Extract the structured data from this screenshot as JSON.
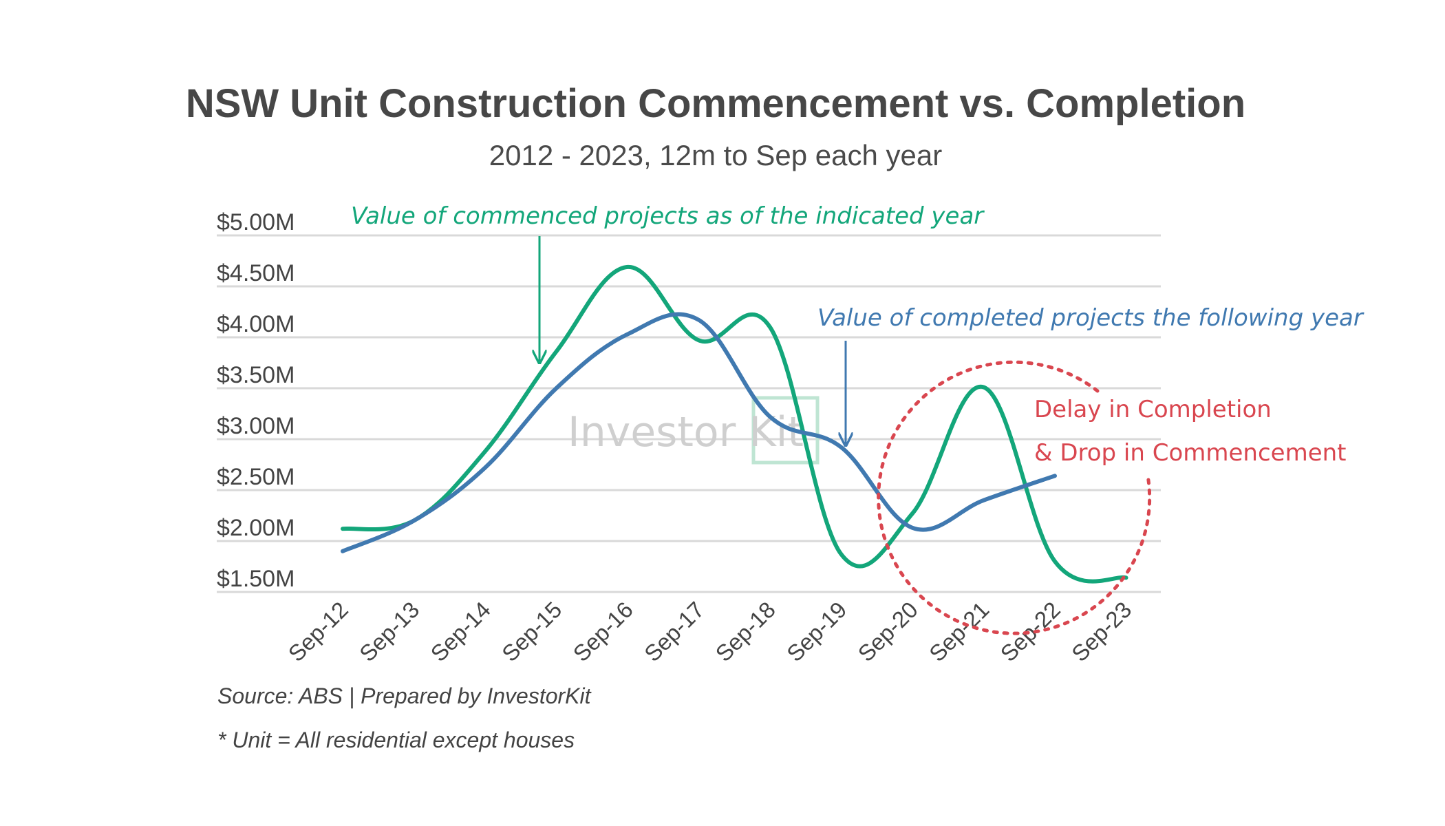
{
  "chart_data": {
    "type": "line",
    "title": "NSW Unit Construction Commencement vs. Completion",
    "subtitle": "2012 - 2023, 12m to Sep each year",
    "xlabel": "",
    "ylabel": "",
    "categories": [
      "Sep-12",
      "Sep-13",
      "Sep-14",
      "Sep-15",
      "Sep-16",
      "Sep-17",
      "Sep-18",
      "Sep-19",
      "Sep-20",
      "Sep-21",
      "Sep-22",
      "Sep-23"
    ],
    "ylim": [
      1.5,
      5.0
    ],
    "yticks": [
      1.5,
      2.0,
      2.5,
      3.0,
      3.5,
      4.0,
      4.5,
      5.0
    ],
    "ytick_labels": [
      "$1.50M",
      "$2.00M",
      "$2.50M",
      "$3.00M",
      "$3.50M",
      "$4.00M",
      "$4.50M",
      "$5.00M"
    ],
    "grid": true,
    "series": [
      {
        "name": "Value of commenced projects as of the indicated year",
        "color": "#13a67a",
        "values": [
          2.12,
          2.2,
          2.88,
          3.86,
          4.69,
          3.97,
          4.1,
          1.87,
          2.27,
          3.51,
          1.8,
          1.64
        ]
      },
      {
        "name": "Value of completed projects the following year",
        "color": "#4079b0",
        "values": [
          1.9,
          2.2,
          2.72,
          3.5,
          4.03,
          4.17,
          3.22,
          2.92,
          2.13,
          2.4,
          2.64,
          null
        ]
      }
    ],
    "annotations": {
      "commenced_label": "Value of commenced projects as of the indicated year",
      "completed_label": "Value of completed projects the following year",
      "callout_line1": "Delay in Completion",
      "callout_line2": "& Drop in Commencement"
    }
  },
  "colors": {
    "commenced": "#13a67a",
    "completed": "#4079b0",
    "callout": "#d9464f",
    "watermark_box": "#bfe5d3"
  },
  "watermark": {
    "text": "Investor Kit"
  },
  "footer": {
    "source": "Source: ABS | Prepared by InvestorKit",
    "note": "* Unit = All residential except houses"
  }
}
